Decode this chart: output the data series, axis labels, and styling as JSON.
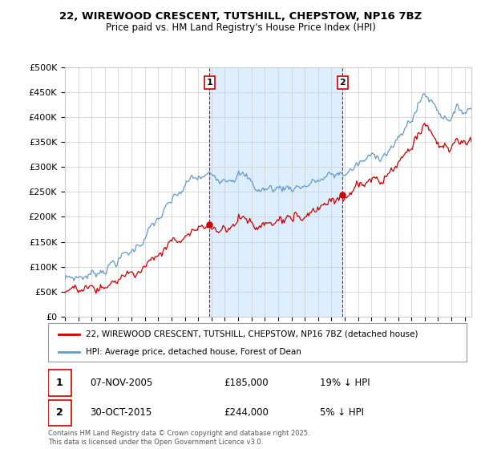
{
  "title_line1": "22, WIREWOOD CRESCENT, TUTSHILL, CHEPSTOW, NP16 7BZ",
  "title_line2": "Price paid vs. HM Land Registry's House Price Index (HPI)",
  "legend_label1": "22, WIREWOOD CRESCENT, TUTSHILL, CHEPSTOW, NP16 7BZ (detached house)",
  "legend_label2": "HPI: Average price, detached house, Forest of Dean",
  "annotation1_date": "07-NOV-2005",
  "annotation1_price": "£185,000",
  "annotation1_hpi": "19% ↓ HPI",
  "annotation2_date": "30-OCT-2015",
  "annotation2_price": "£244,000",
  "annotation2_hpi": "5% ↓ HPI",
  "footer": "Contains HM Land Registry data © Crown copyright and database right 2025.\nThis data is licensed under the Open Government Licence v3.0.",
  "ylim": [
    0,
    500000
  ],
  "yticks": [
    0,
    50000,
    100000,
    150000,
    200000,
    250000,
    300000,
    350000,
    400000,
    450000,
    500000
  ],
  "line_color_red": "#cc0000",
  "line_color_blue": "#6699cc",
  "shade_color": "#ddeeff",
  "vline_color": "#cc0000",
  "grid_color": "#cccccc",
  "bg_color": "#ffffff",
  "purchase1_year": 2005.85,
  "purchase1_value": 185000,
  "purchase2_year": 2015.83,
  "purchase2_value": 244000,
  "xmin": 1995,
  "xmax": 2025.5
}
